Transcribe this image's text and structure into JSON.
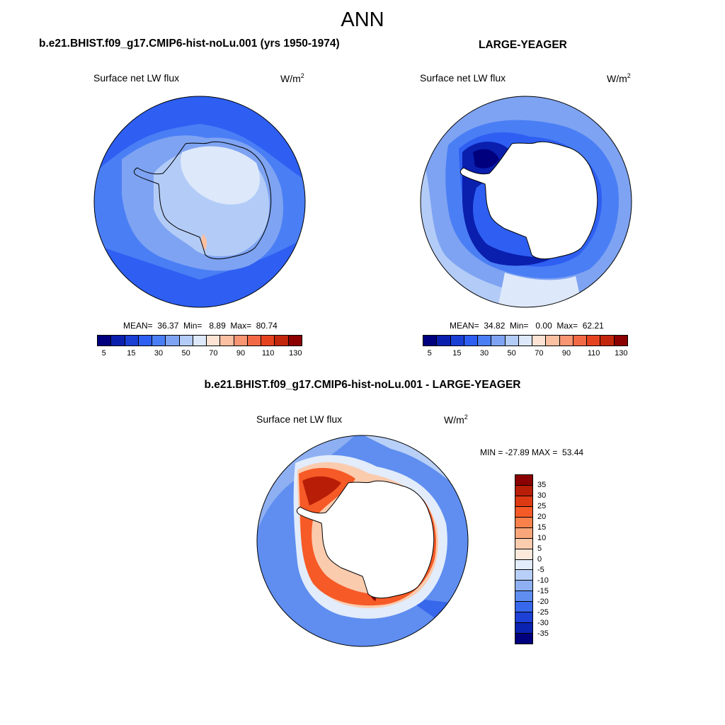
{
  "figure": {
    "title": "ANN",
    "panels": [
      {
        "title": "b.e21.BHIST.f09_g17.CMIP6-hist-noLu.001 (yrs 1950-1974)",
        "variable": "Surface net LW flux",
        "units": "W/m",
        "units_sup": "2",
        "stats": "MEAN=  36.37  Min=   8.89  Max=  80.74",
        "colorbar_labels": [
          "5",
          "15",
          "30",
          "50",
          "70",
          "90",
          "110",
          "130"
        ]
      },
      {
        "title": "LARGE-YEAGER",
        "variable": "Surface net LW flux",
        "units": "W/m",
        "units_sup": "2",
        "stats": "MEAN=  34.82  Min=   0.00  Max=  62.21",
        "colorbar_labels": [
          "5",
          "15",
          "30",
          "50",
          "70",
          "90",
          "110",
          "130"
        ]
      },
      {
        "title": "b.e21.BHIST.f09_g17.CMIP6-hist-noLu.001 - LARGE-YEAGER",
        "variable": "Surface net LW flux",
        "units": "W/m",
        "units_sup": "2",
        "stats": "MIN = -27.89 MAX =  53.44",
        "colorbar_labels": [
          "35",
          "30",
          "25",
          "20",
          "15",
          "10",
          "5",
          "0",
          "-5",
          "-10",
          "-15",
          "-20",
          "-25",
          "-30",
          "-35"
        ]
      }
    ],
    "colors": {
      "abs_scale": [
        "#00007f",
        "#0a1fae",
        "#1a3fd4",
        "#2e5ff2",
        "#4a7ef5",
        "#7ea3f2",
        "#b3ccf7",
        "#dde8fb",
        "#fde3d3",
        "#fbbfa2",
        "#f89572",
        "#f26a45",
        "#e5431f",
        "#c2260c",
        "#8b0000"
      ],
      "diff_scale": [
        "#8b0000",
        "#b81e07",
        "#dd3a13",
        "#f65a27",
        "#f8814c",
        "#f9a67a",
        "#fbcbad",
        "#fde9dc",
        "#e2ecfb",
        "#b8cff7",
        "#8eb0f2",
        "#5f8ef0",
        "#3767eb",
        "#1d40d6",
        "#0a23b0",
        "#00007f"
      ]
    }
  }
}
